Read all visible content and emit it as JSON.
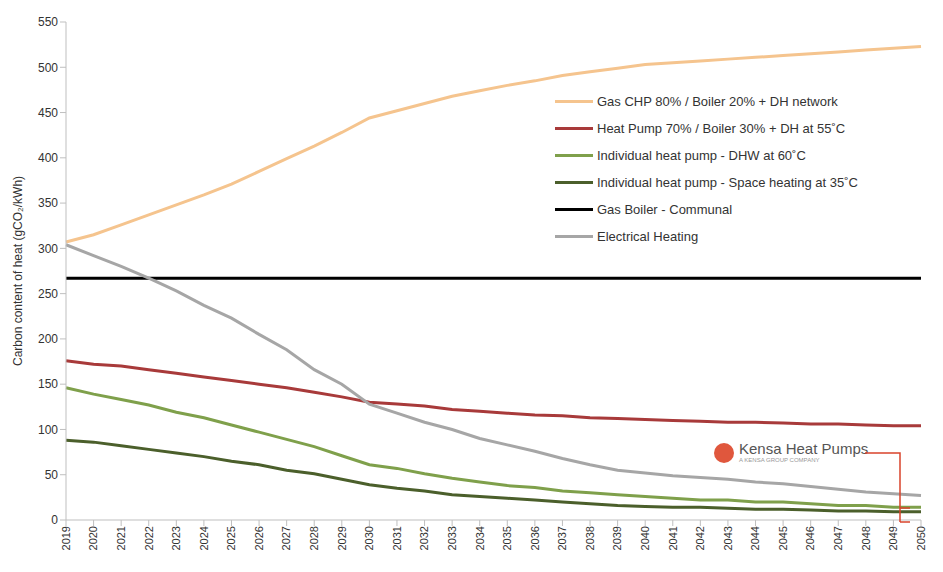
{
  "chart_data": {
    "type": "line",
    "categories": [
      "2019",
      "2020",
      "2021",
      "2022",
      "2023",
      "2024",
      "2025",
      "2026",
      "2027",
      "2028",
      "2029",
      "2030",
      "2031",
      "2032",
      "2033",
      "2034",
      "2035",
      "2036",
      "2037",
      "2038",
      "2039",
      "2040",
      "2041",
      "2042",
      "2043",
      "2044",
      "2045",
      "2046",
      "2047",
      "2048",
      "2049",
      "2050"
    ],
    "series": [
      {
        "name": "Gas CHP 80% / Boiler 20% + DH network",
        "color": "#f5c48e",
        "values": [
          307,
          315,
          326,
          337,
          348,
          359,
          371,
          385,
          399,
          413,
          428,
          444,
          452,
          460,
          468,
          474,
          480,
          485,
          491,
          495,
          499,
          503,
          505,
          507,
          509,
          511,
          513,
          515,
          517,
          519,
          521,
          523
        ]
      },
      {
        "name": "Heat Pump 70% / Boiler 30% + DH at 55˚C",
        "color": "#a83a3a",
        "values": [
          176,
          172,
          170,
          166,
          162,
          158,
          154,
          150,
          146,
          141,
          136,
          130,
          128,
          126,
          122,
          120,
          118,
          116,
          115,
          113,
          112,
          111,
          110,
          109,
          108,
          108,
          107,
          106,
          106,
          105,
          104,
          104
        ]
      },
      {
        "name": "Individual heat pump  - DHW at 60˚C",
        "color": "#7fa04b",
        "values": [
          146,
          139,
          133,
          127,
          119,
          113,
          105,
          97,
          89,
          81,
          71,
          61,
          57,
          51,
          46,
          42,
          38,
          36,
          32,
          30,
          28,
          26,
          24,
          22,
          22,
          20,
          20,
          18,
          16,
          16,
          14,
          14
        ]
      },
      {
        "name": "Individual heat pump - Space heating at 35˚C",
        "color": "#4b5f2b",
        "values": [
          88,
          86,
          82,
          78,
          74,
          70,
          65,
          61,
          55,
          51,
          45,
          39,
          35,
          32,
          28,
          26,
          24,
          22,
          20,
          18,
          16,
          15,
          14,
          14,
          13,
          12,
          12,
          11,
          10,
          10,
          9,
          9
        ]
      },
      {
        "name": "Gas Boiler - Communal",
        "color": "#000000",
        "values": [
          267,
          267,
          267,
          267,
          267,
          267,
          267,
          267,
          267,
          267,
          267,
          267,
          267,
          267,
          267,
          267,
          267,
          267,
          267,
          267,
          267,
          267,
          267,
          267,
          267,
          267,
          267,
          267,
          267,
          267,
          267,
          267
        ]
      },
      {
        "name": "Electrical Heating",
        "color": "#a6a6a6",
        "values": [
          304,
          292,
          280,
          267,
          253,
          237,
          223,
          205,
          188,
          166,
          150,
          128,
          118,
          108,
          100,
          90,
          83,
          76,
          68,
          61,
          55,
          52,
          49,
          47,
          45,
          42,
          40,
          37,
          34,
          31,
          29,
          27
        ]
      }
    ],
    "y_label": "Carbon content of heat (gCO₂/kWh)",
    "ylim": [
      0,
      550
    ],
    "yticks": [
      0,
      50,
      100,
      150,
      200,
      250,
      300,
      350,
      400,
      450,
      500,
      550
    ],
    "grid": false,
    "legend": "top right",
    "annotations": [
      "Kensa Heat Pumps",
      "A KENSA GROUP COMPANY"
    ]
  }
}
